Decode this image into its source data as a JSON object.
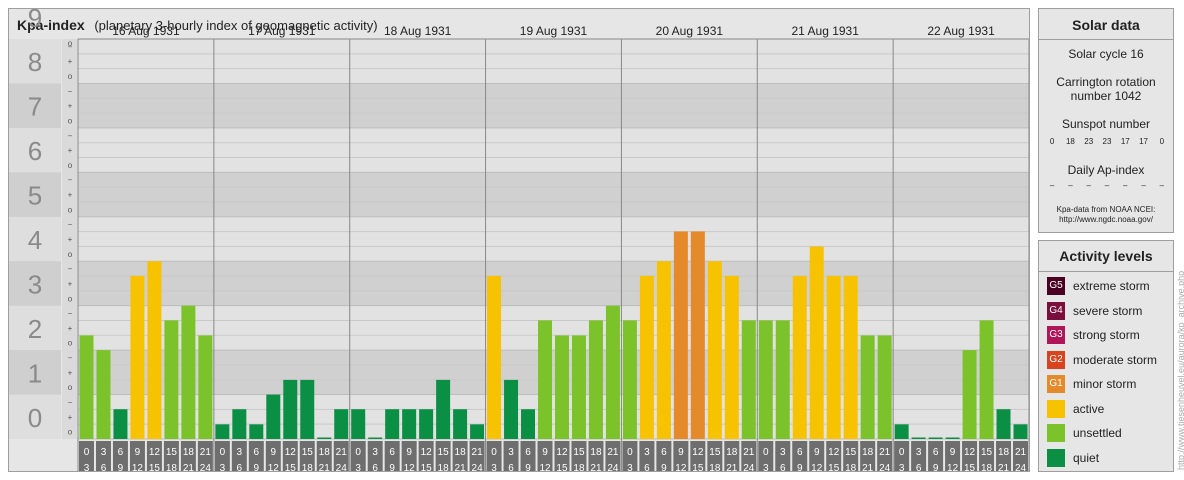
{
  "header": {
    "title": "Kpa-index",
    "subtitle": "(planetary 3-hourly index of geomagnetic activity)"
  },
  "chart_data": {
    "type": "bar",
    "ylim": [
      0,
      9
    ],
    "y_ticks": [
      "0",
      "1",
      "2",
      "3",
      "4",
      "5",
      "6",
      "7",
      "8",
      "9"
    ],
    "y_minor_marks": [
      "+",
      "o",
      "−"
    ],
    "days": [
      "16 Aug 1931",
      "17 Aug 1931",
      "18 Aug 1931",
      "19 Aug 1931",
      "20 Aug 1931",
      "21 Aug 1931",
      "22 Aug 1931"
    ],
    "interval_start": [
      "0",
      "3",
      "6",
      "9",
      "12",
      "15",
      "18",
      "21"
    ],
    "interval_end": [
      "3",
      "6",
      "9",
      "12",
      "15",
      "18",
      "21",
      "24"
    ],
    "values": [
      [
        2.33,
        2.0,
        0.67,
        3.67,
        4.0,
        2.67,
        3.0,
        2.33
      ],
      [
        0.33,
        0.67,
        0.33,
        1.0,
        1.33,
        1.33,
        0.0,
        0.67
      ],
      [
        0.67,
        0.0,
        0.67,
        0.67,
        0.67,
        1.33,
        0.67,
        0.33
      ],
      [
        3.67,
        1.33,
        0.67,
        2.67,
        2.33,
        2.33,
        2.67,
        3.0
      ],
      [
        2.67,
        3.67,
        4.0,
        4.67,
        4.67,
        4.0,
        3.67,
        2.67
      ],
      [
        2.67,
        2.67,
        3.67,
        4.33,
        3.67,
        3.67,
        2.33,
        2.33
      ],
      [
        0.33,
        0.0,
        0.0,
        0.0,
        2.0,
        2.67,
        0.67,
        0.33
      ]
    ],
    "colors": {
      "quiet": "#0a8f45",
      "unsettled": "#7cc22a",
      "active": "#f7c200",
      "G1": "#e58a2a",
      "G2": "#d9431e",
      "G3": "#b0155a",
      "G4": "#7a0f3e",
      "G5": "#4a0020"
    }
  },
  "solar": {
    "title": "Solar data",
    "cycle": "Solar cycle 16",
    "carrington_line1": "Carrington rotation",
    "carrington_line2": "number 1042",
    "sunspot_label": "Sunspot number",
    "sunspot_values": [
      "0",
      "18",
      "23",
      "23",
      "17",
      "17",
      "0"
    ],
    "ap_label": "Daily Ap-index",
    "ap_values": [
      "–",
      "–",
      "–",
      "–",
      "–",
      "–",
      "–"
    ],
    "source_line1": "Kpa-data from NOAA NCEI:",
    "source_line2": "http://www.ngdc.noaa.gov/"
  },
  "levels": {
    "title": "Activity levels",
    "items": [
      {
        "code": "G5",
        "label": "extreme storm",
        "color": "#4a0020"
      },
      {
        "code": "G4",
        "label": "severe storm",
        "color": "#7a0f3e"
      },
      {
        "code": "G3",
        "label": "strong storm",
        "color": "#b0155a"
      },
      {
        "code": "G2",
        "label": "moderate storm",
        "color": "#d9431e"
      },
      {
        "code": "G1",
        "label": "minor storm",
        "color": "#e58a2a"
      },
      {
        "code": "",
        "label": "active",
        "color": "#f7c200"
      },
      {
        "code": "",
        "label": "unsettled",
        "color": "#7cc22a"
      },
      {
        "code": "",
        "label": "quiet",
        "color": "#0a8f45"
      }
    ]
  },
  "watermark": "http://www.tiesenheuvel.eu/aurora/kp_archive.php"
}
